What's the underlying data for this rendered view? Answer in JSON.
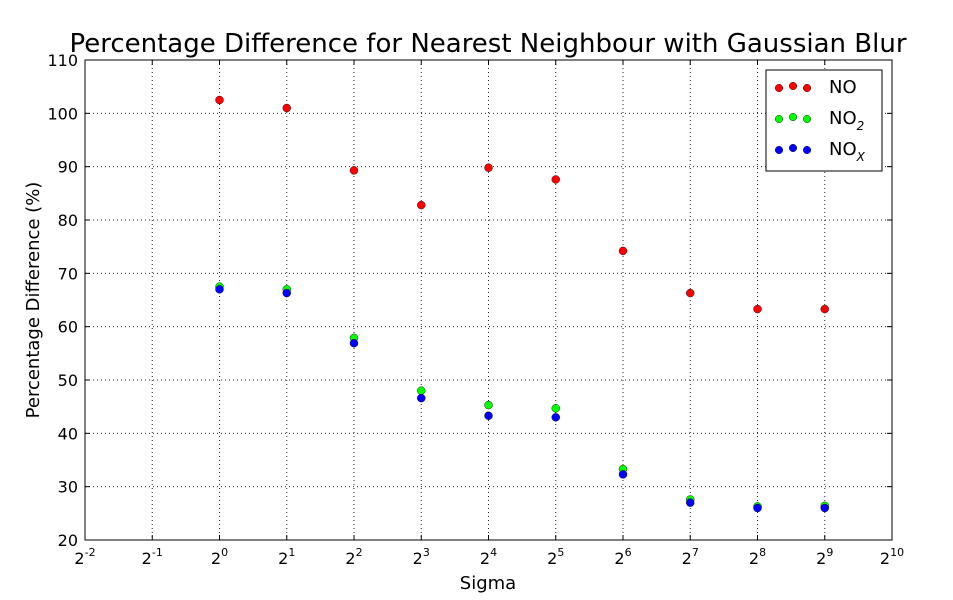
{
  "chart_data": {
    "type": "scatter",
    "title": "Percentage Difference for Nearest Neighbour with Gaussian Blur",
    "xlabel": "Sigma",
    "ylabel": "Percentage Difference (%)",
    "x_scale": "log2",
    "x_tick_base": "2",
    "x_tick_exponents": [
      "-2",
      "-1",
      "0",
      "1",
      "2",
      "3",
      "4",
      "5",
      "6",
      "7",
      "8",
      "9",
      "10"
    ],
    "x_tick_exponent_values": [
      -2,
      -1,
      0,
      1,
      2,
      3,
      4,
      5,
      6,
      7,
      8,
      9,
      10
    ],
    "y_ticks": [
      20,
      30,
      40,
      50,
      60,
      70,
      80,
      90,
      100,
      110
    ],
    "ylim": [
      20,
      110
    ],
    "grid": true,
    "legend_position": "top-right",
    "x": [
      1,
      2,
      4,
      8,
      16,
      32,
      64,
      128,
      256,
      512
    ],
    "series": [
      {
        "name": "NO",
        "label_main": "NO",
        "label_sub": "",
        "color": "#ff0000",
        "values": [
          102.5,
          101,
          89.3,
          82.8,
          89.8,
          87.6,
          74.2,
          66.3,
          63.3,
          63.3
        ]
      },
      {
        "name": "NO2",
        "label_main": "NO",
        "label_sub": "2",
        "color": "#00ff00",
        "values": [
          67.5,
          67,
          57.9,
          48,
          45.3,
          44.7,
          33.3,
          27.6,
          26.3,
          26.4
        ]
      },
      {
        "name": "NOX",
        "label_main": "NO",
        "label_sub": "X",
        "color": "#0000ff",
        "values": [
          67,
          66.3,
          56.9,
          46.6,
          43.3,
          43,
          32.3,
          27,
          26,
          26
        ]
      }
    ]
  }
}
